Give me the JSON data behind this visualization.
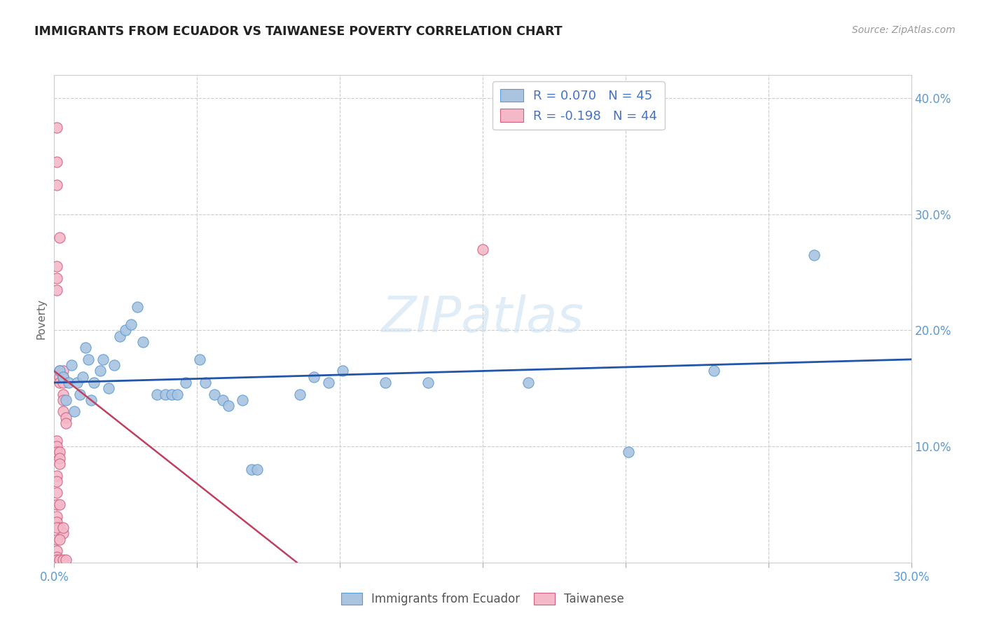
{
  "title": "IMMIGRANTS FROM ECUADOR VS TAIWANESE POVERTY CORRELATION CHART",
  "source": "Source: ZipAtlas.com",
  "ylabel": "Poverty",
  "xlim": [
    0.0,
    0.3
  ],
  "ylim": [
    0.0,
    0.42
  ],
  "legend_entries": [
    {
      "label": "R = 0.070   N = 45",
      "color_r": "#4472c4",
      "color_n": "#4472c4"
    },
    {
      "label": "R = -0.198   N = 44",
      "color_r": "#4472c4",
      "color_n": "#4472c4"
    }
  ],
  "watermark": "ZIPatlas",
  "background_color": "#ffffff",
  "scatter_blue_color": "#aac4e0",
  "scatter_blue_edge": "#5b9bd5",
  "scatter_pink_color": "#f4b8c8",
  "scatter_pink_edge": "#d06080",
  "line_blue_color": "#2255aa",
  "line_pink_color": "#c04060",
  "grid_color": "#cccccc",
  "tick_color": "#5b9bd5",
  "blue_points": [
    [
      0.002,
      0.165
    ],
    [
      0.003,
      0.16
    ],
    [
      0.004,
      0.14
    ],
    [
      0.005,
      0.155
    ],
    [
      0.006,
      0.17
    ],
    [
      0.007,
      0.13
    ],
    [
      0.008,
      0.155
    ],
    [
      0.009,
      0.145
    ],
    [
      0.01,
      0.16
    ],
    [
      0.011,
      0.185
    ],
    [
      0.012,
      0.175
    ],
    [
      0.013,
      0.14
    ],
    [
      0.014,
      0.155
    ],
    [
      0.016,
      0.165
    ],
    [
      0.017,
      0.175
    ],
    [
      0.019,
      0.15
    ],
    [
      0.021,
      0.17
    ],
    [
      0.023,
      0.195
    ],
    [
      0.025,
      0.2
    ],
    [
      0.027,
      0.205
    ],
    [
      0.029,
      0.22
    ],
    [
      0.031,
      0.19
    ],
    [
      0.036,
      0.145
    ],
    [
      0.039,
      0.145
    ],
    [
      0.041,
      0.145
    ],
    [
      0.043,
      0.145
    ],
    [
      0.046,
      0.155
    ],
    [
      0.051,
      0.175
    ],
    [
      0.053,
      0.155
    ],
    [
      0.056,
      0.145
    ],
    [
      0.059,
      0.14
    ],
    [
      0.061,
      0.135
    ],
    [
      0.066,
      0.14
    ],
    [
      0.069,
      0.08
    ],
    [
      0.071,
      0.08
    ],
    [
      0.086,
      0.145
    ],
    [
      0.091,
      0.16
    ],
    [
      0.096,
      0.155
    ],
    [
      0.101,
      0.165
    ],
    [
      0.116,
      0.155
    ],
    [
      0.131,
      0.155
    ],
    [
      0.166,
      0.155
    ],
    [
      0.201,
      0.095
    ],
    [
      0.231,
      0.165
    ],
    [
      0.266,
      0.265
    ]
  ],
  "pink_points": [
    [
      0.001,
      0.375
    ],
    [
      0.001,
      0.345
    ],
    [
      0.001,
      0.325
    ],
    [
      0.002,
      0.28
    ],
    [
      0.001,
      0.255
    ],
    [
      0.001,
      0.245
    ],
    [
      0.001,
      0.235
    ],
    [
      0.002,
      0.165
    ],
    [
      0.002,
      0.16
    ],
    [
      0.002,
      0.155
    ],
    [
      0.003,
      0.165
    ],
    [
      0.003,
      0.16
    ],
    [
      0.003,
      0.155
    ],
    [
      0.003,
      0.145
    ],
    [
      0.003,
      0.14
    ],
    [
      0.003,
      0.13
    ],
    [
      0.004,
      0.125
    ],
    [
      0.004,
      0.12
    ],
    [
      0.001,
      0.105
    ],
    [
      0.001,
      0.1
    ],
    [
      0.001,
      0.095
    ],
    [
      0.002,
      0.095
    ],
    [
      0.002,
      0.09
    ],
    [
      0.002,
      0.085
    ],
    [
      0.001,
      0.075
    ],
    [
      0.001,
      0.07
    ],
    [
      0.001,
      0.06
    ],
    [
      0.001,
      0.05
    ],
    [
      0.002,
      0.05
    ],
    [
      0.001,
      0.04
    ],
    [
      0.001,
      0.035
    ],
    [
      0.002,
      0.03
    ],
    [
      0.003,
      0.025
    ],
    [
      0.001,
      0.02
    ],
    [
      0.002,
      0.02
    ],
    [
      0.001,
      0.01
    ],
    [
      0.001,
      0.005
    ],
    [
      0.001,
      0.002
    ],
    [
      0.002,
      0.002
    ],
    [
      0.003,
      0.002
    ],
    [
      0.004,
      0.002
    ],
    [
      0.001,
      0.03
    ],
    [
      0.003,
      0.03
    ],
    [
      0.15,
      0.27
    ]
  ],
  "blue_line_x0": 0.0,
  "blue_line_x1": 0.3,
  "blue_line_y0": 0.155,
  "blue_line_y1": 0.175,
  "pink_line_x0": 0.0,
  "pink_line_x1": 0.085,
  "pink_line_y0": 0.165,
  "pink_line_y1": 0.0
}
